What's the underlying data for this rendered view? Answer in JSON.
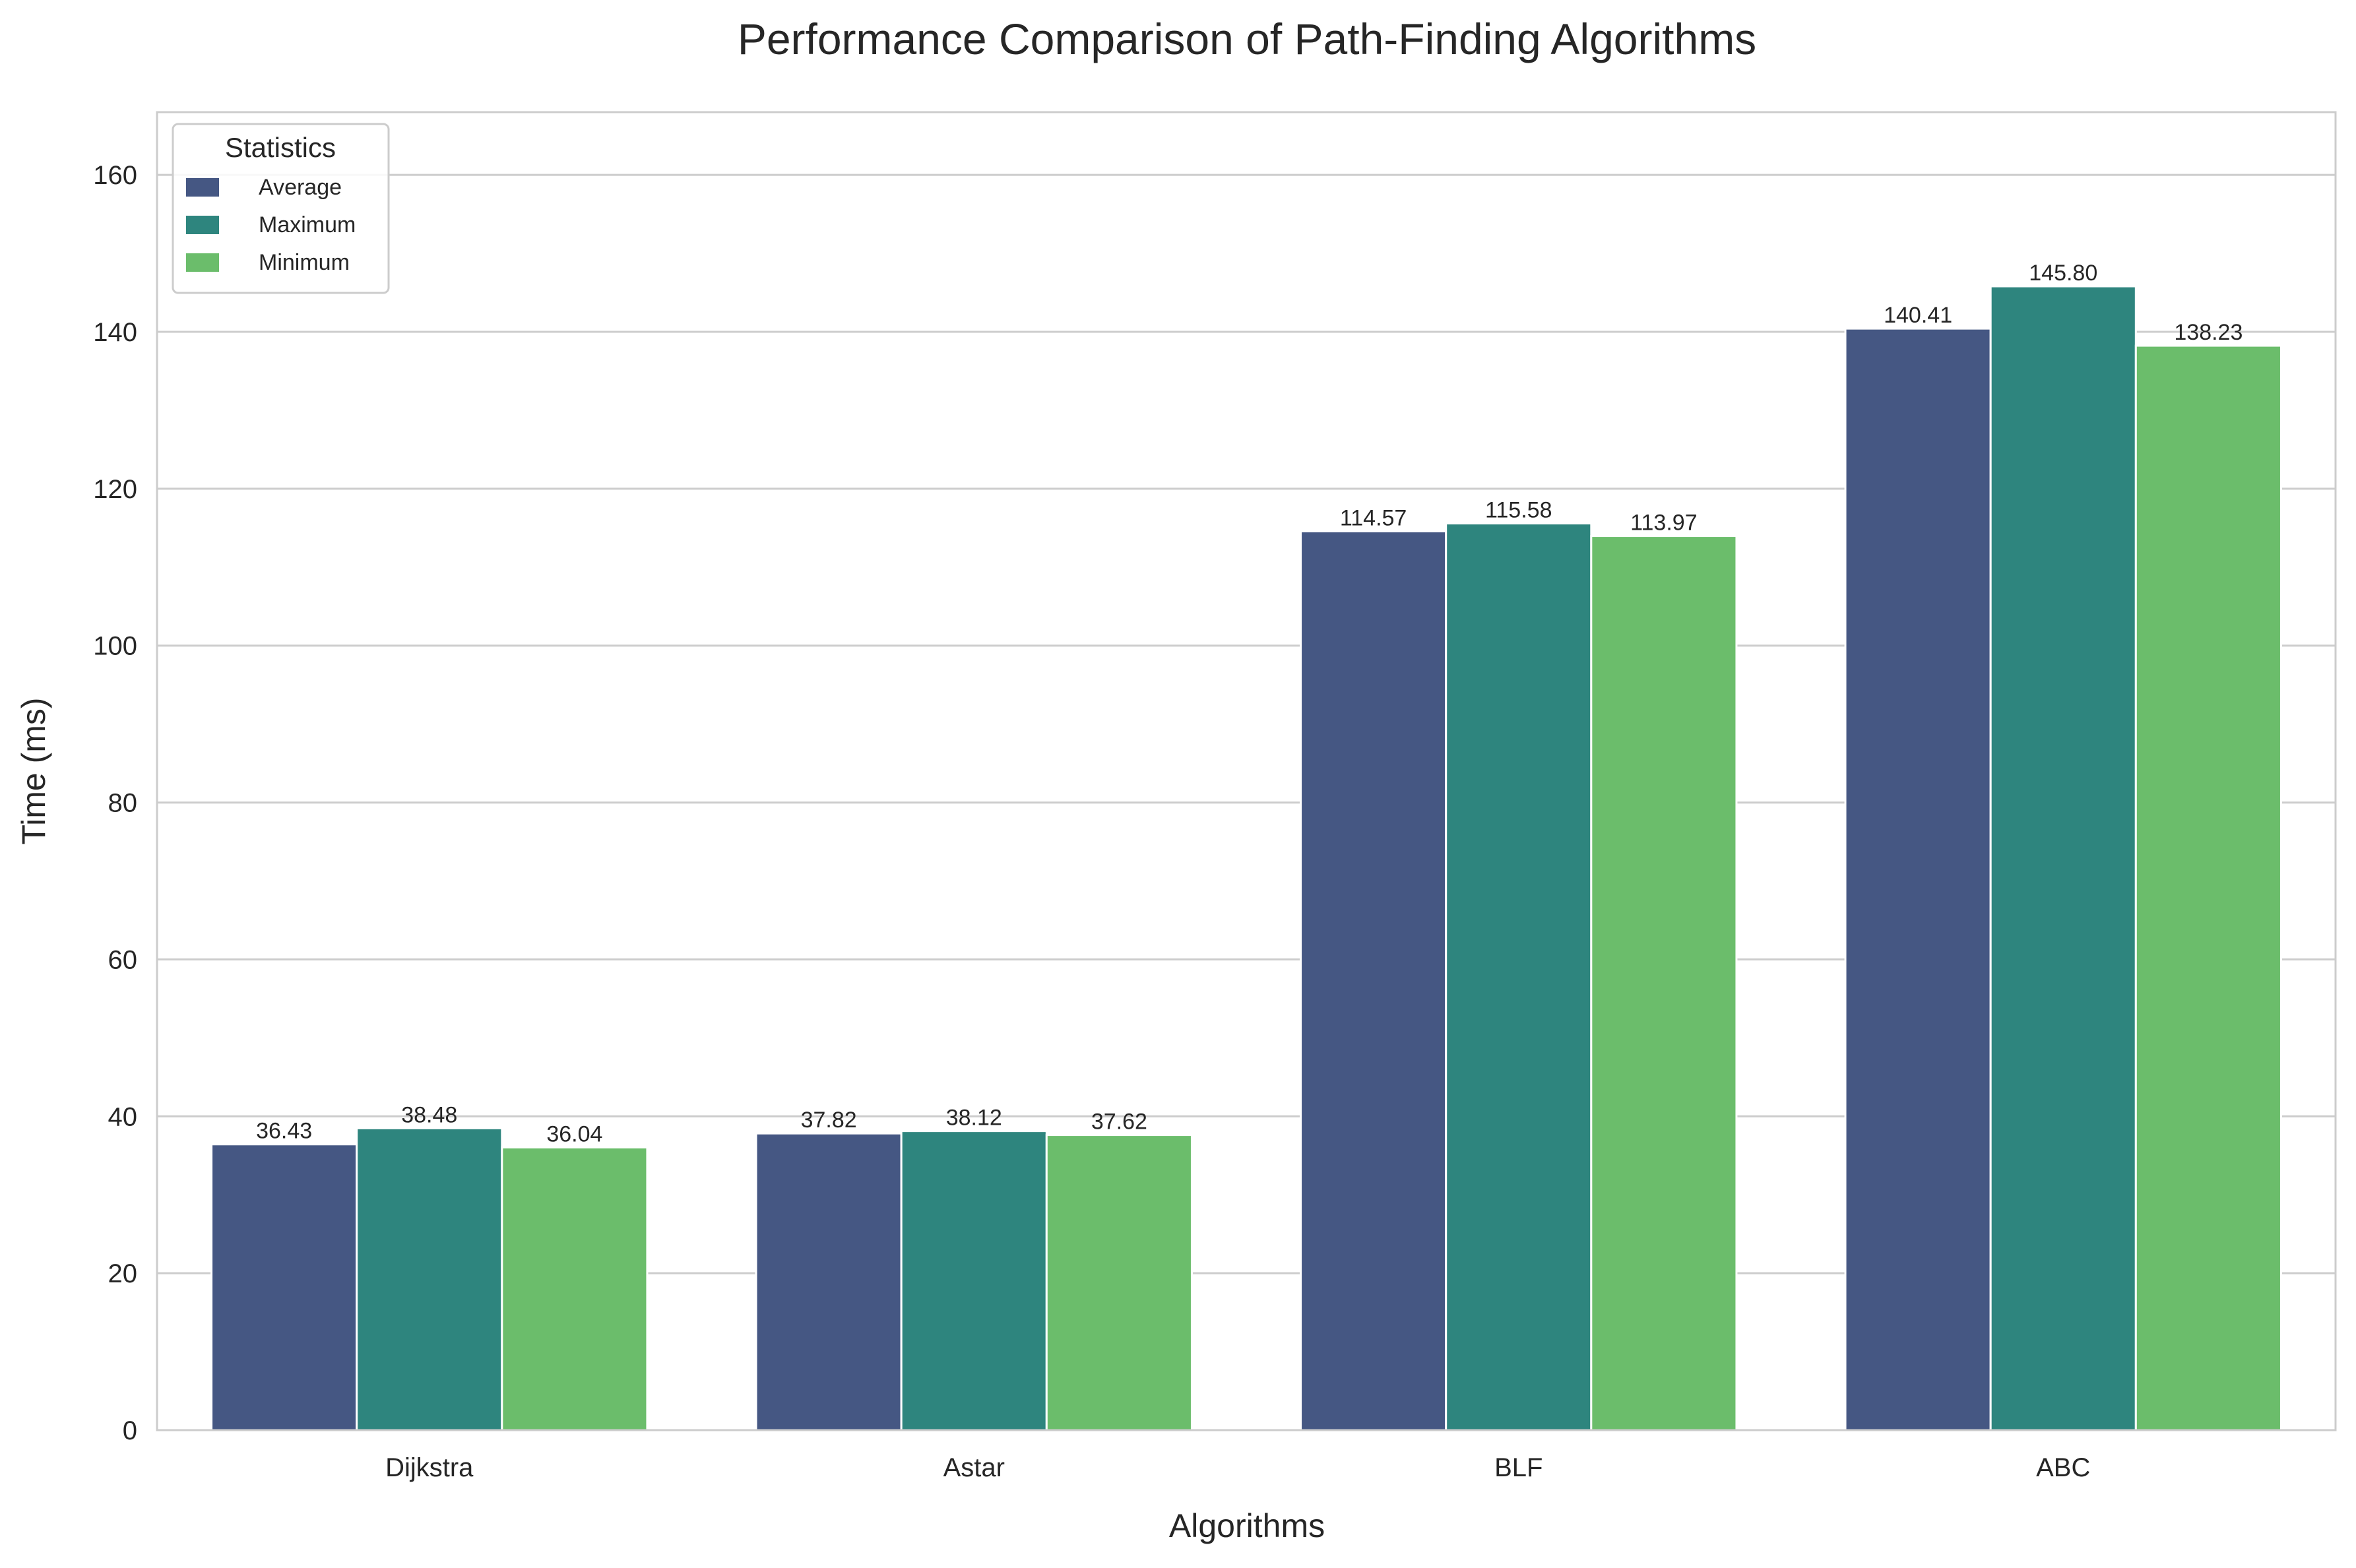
{
  "chart_data": {
    "type": "bar",
    "title": "Performance Comparison of Path-Finding Algorithms",
    "xlabel": "Algorithms",
    "ylabel": "Time (ms)",
    "categories": [
      "Dijkstra",
      "Astar",
      "BLF",
      "ABC"
    ],
    "series": [
      {
        "name": "Average",
        "color": "#455783",
        "values": [
          36.43,
          37.82,
          114.57,
          140.41
        ],
        "labels": [
          "36.43",
          "37.82",
          "114.57",
          "140.41"
        ]
      },
      {
        "name": "Maximum",
        "color": "#2e857e",
        "values": [
          38.48,
          38.12,
          115.58,
          145.8
        ],
        "labels": [
          "38.48",
          "38.12",
          "115.58",
          "145.80"
        ]
      },
      {
        "name": "Minimum",
        "color": "#6bbd6b",
        "values": [
          36.04,
          37.62,
          113.97,
          138.23
        ],
        "labels": [
          "36.04",
          "37.62",
          "113.97",
          "138.23"
        ]
      }
    ],
    "ylim": [
      0,
      168
    ],
    "yticks": [
      "0",
      "20",
      "40",
      "60",
      "80",
      "100",
      "120",
      "140",
      "160"
    ],
    "grid": true,
    "legend": {
      "title": "Statistics",
      "placement": "top-left"
    }
  }
}
